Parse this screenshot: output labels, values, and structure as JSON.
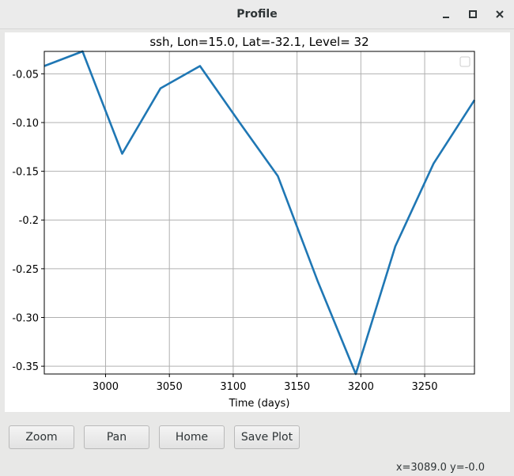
{
  "window": {
    "title": "Profile",
    "controls": [
      "minimize-icon",
      "maximize-icon",
      "close-icon"
    ]
  },
  "chart_data": {
    "type": "line",
    "title": "ssh, Lon=15.0, Lat=-32.1, Level=  32",
    "xlabel": "Time (days)",
    "ylabel": "",
    "xlim": [
      2952,
      3289
    ],
    "ylim": [
      -0.358,
      -0.027
    ],
    "x_ticks": [
      3000,
      3050,
      3100,
      3150,
      3200,
      3250
    ],
    "x_tick_labels": [
      "3000",
      "3050",
      "3100",
      "3150",
      "3200",
      "3250"
    ],
    "y_ticks": [
      -0.05,
      -0.1,
      -0.15,
      -0.2,
      -0.25,
      -0.3,
      -0.35
    ],
    "y_tick_labels": [
      "-0.05",
      "-0.10",
      "-0.15",
      -0.2,
      "-0.25",
      "-0.30",
      "-0.35"
    ],
    "grid": true,
    "legend_placement": "top-right",
    "line_color": "#1f77b4",
    "series": [
      {
        "x": [
          2952,
          2982,
          3013,
          3043,
          3074,
          3105,
          3135,
          3166,
          3196,
          3227,
          3257,
          3289
        ],
        "values": [
          -0.042,
          -0.027,
          -0.132,
          -0.065,
          -0.042,
          -0.1,
          -0.155,
          -0.262,
          -0.358,
          -0.227,
          -0.142,
          -0.077
        ]
      }
    ]
  },
  "toolbar": {
    "zoom_label": "Zoom",
    "pan_label": "Pan",
    "home_label": "Home",
    "save_label": "Save Plot"
  },
  "status": {
    "text": "x=3089.0  y=-0.0"
  }
}
